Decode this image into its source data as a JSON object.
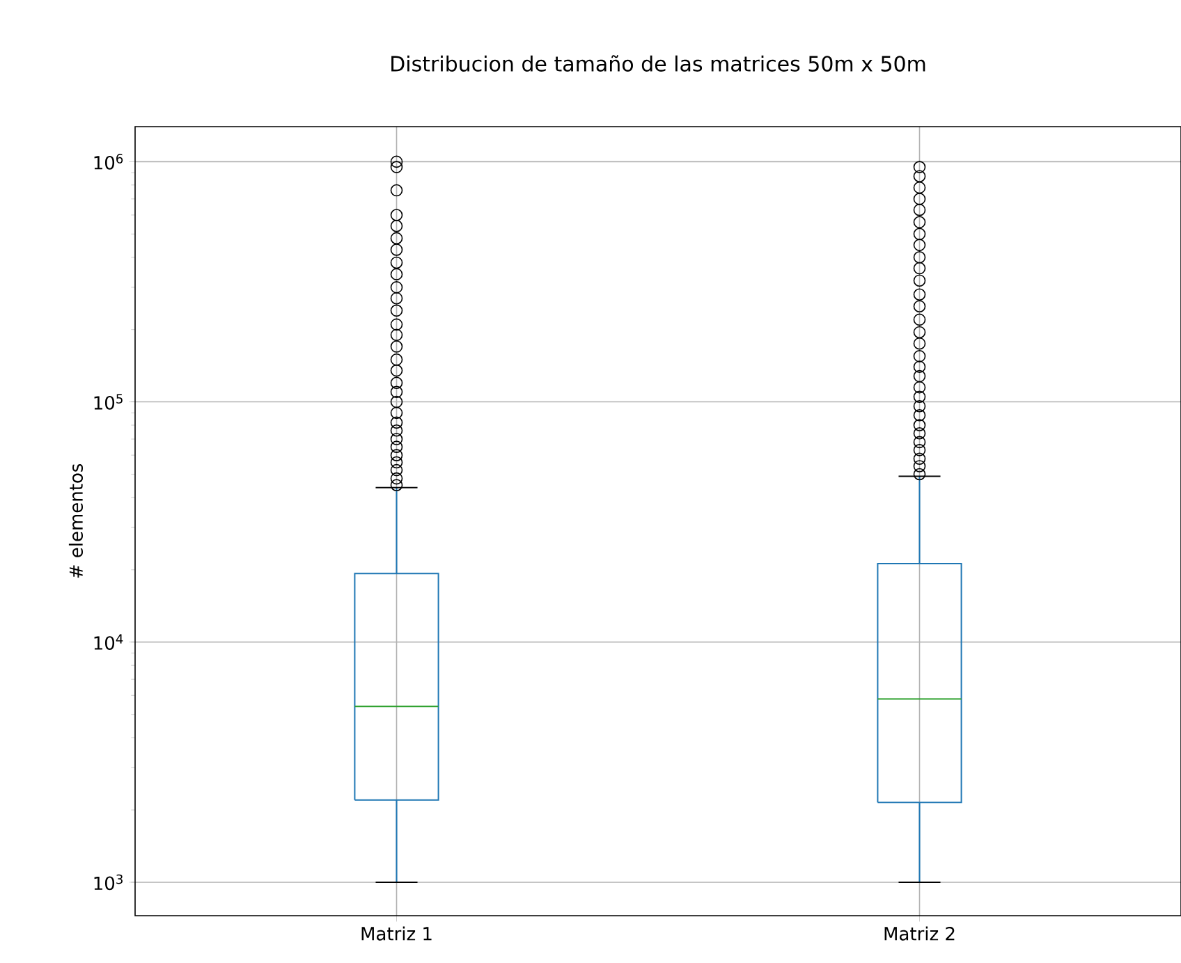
{
  "chart_data": {
    "type": "box",
    "title": "Distribucion de tamaño de las matrices 50m x 50m",
    "ylabel": "# elementos",
    "categories": [
      "Matriz 1",
      "Matriz 2"
    ],
    "log": "y",
    "grid": true,
    "ylim": [
      726,
      1400000
    ],
    "yticks": [
      {
        "value": 1000,
        "label": "10$^{3}$"
      },
      {
        "value": 10000,
        "label": "10$^{4}$"
      },
      {
        "value": 100000,
        "label": "10$^{5}$"
      },
      {
        "value": 1000000,
        "label": "10$^{6}$"
      }
    ],
    "color": "#1f77b4",
    "boxes": [
      {
        "low": 1000,
        "q1": 2200,
        "median": 5400,
        "q3": 19300,
        "high": 44000,
        "outliers": [
          45000,
          48000,
          52000,
          56000,
          60000,
          65000,
          70000,
          76000,
          82000,
          90000,
          100000,
          110000,
          120000,
          135000,
          150000,
          170000,
          190000,
          210000,
          240000,
          270000,
          300000,
          340000,
          380000,
          430000,
          480000,
          540000,
          600000,
          760000,
          950000,
          1000000
        ]
      },
      {
        "low": 1000,
        "q1": 2150,
        "median": 5800,
        "q3": 21200,
        "high": 49000,
        "outliers": [
          50000,
          54000,
          58000,
          63000,
          68000,
          74000,
          80000,
          88000,
          96000,
          105000,
          115000,
          128000,
          140000,
          155000,
          175000,
          195000,
          220000,
          250000,
          280000,
          320000,
          360000,
          400000,
          450000,
          500000,
          560000,
          630000,
          700000,
          780000,
          870000,
          950000
        ]
      }
    ]
  }
}
